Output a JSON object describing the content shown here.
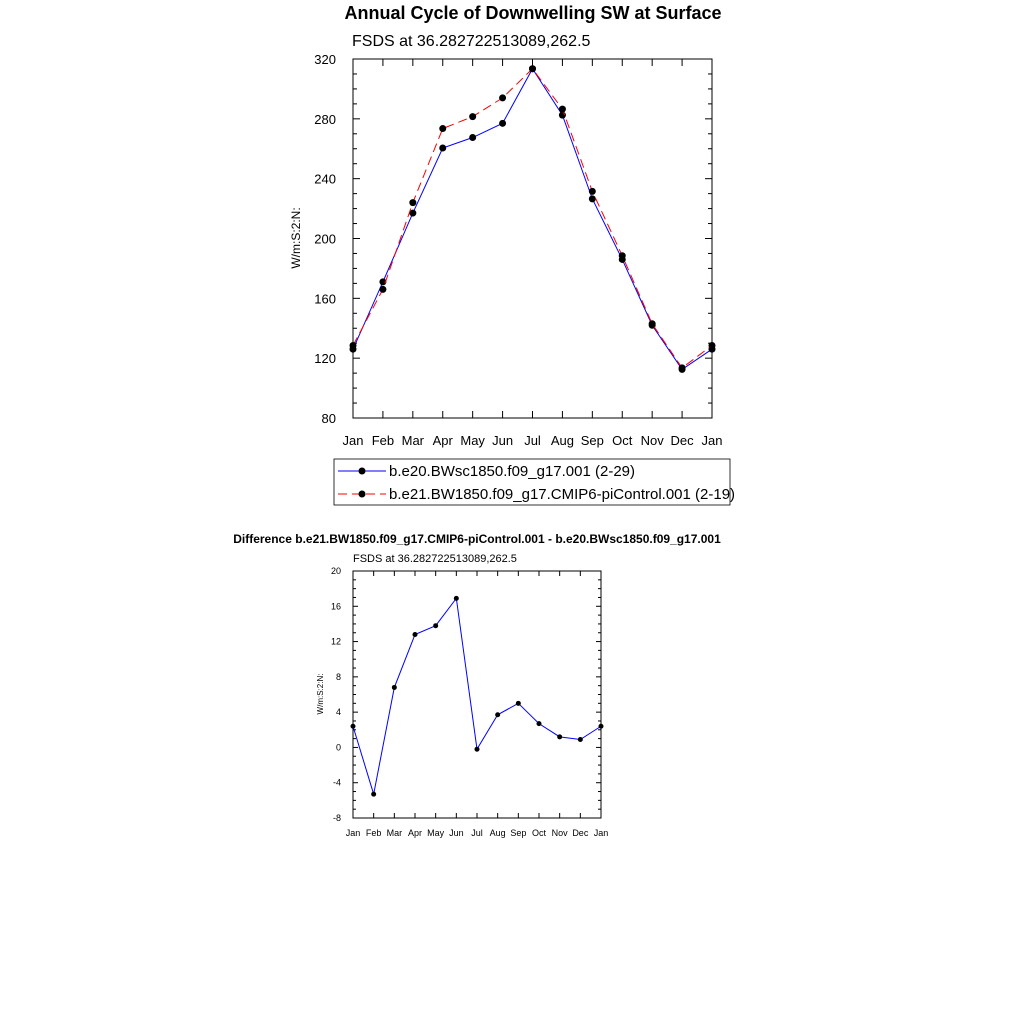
{
  "chart_data": [
    {
      "type": "line",
      "title": "Annual Cycle of Downwelling SW at Surface",
      "subtitle": "FSDS at 36.282722513089,262.5",
      "xlabel": "",
      "ylabel": "W/m:S:2:N:",
      "categories": [
        "Jan",
        "Feb",
        "Mar",
        "Apr",
        "May",
        "Jun",
        "Jul",
        "Aug",
        "Sep",
        "Oct",
        "Nov",
        "Dec",
        "Jan"
      ],
      "ylim": [
        80,
        320
      ],
      "yticks": [
        80,
        120,
        160,
        200,
        240,
        280,
        320
      ],
      "legend_position": "bottom",
      "series": [
        {
          "name": "b.e20.BWsc1850.f09_g17.001 (2-29)",
          "color": "#0000ff",
          "line_style": "solid",
          "values": [
            126.0,
            171.0,
            217.0,
            260.5,
            267.5,
            277.0,
            313.5,
            282.5,
            226.5,
            186.0,
            142.0,
            112.5,
            126.0
          ]
        },
        {
          "name": "b.e21.BW1850.f09_g17.CMIP6-piControl.001 (2-19)",
          "color": "#ff0000",
          "line_style": "dashed",
          "values": [
            128.5,
            166.0,
            224.0,
            273.5,
            281.5,
            294.0,
            313.5,
            286.5,
            231.5,
            188.5,
            143.0,
            113.5,
            128.5
          ]
        }
      ]
    },
    {
      "type": "line",
      "title": "Difference b.e21.BW1850.f09_g17.CMIP6-piControl.001 - b.e20.BWsc1850.f09_g17.001",
      "subtitle": "FSDS at 36.282722513089,262.5",
      "xlabel": "",
      "ylabel": "W/m:S:2:N:",
      "categories": [
        "Jan",
        "Feb",
        "Mar",
        "Apr",
        "May",
        "Jun",
        "Jul",
        "Aug",
        "Sep",
        "Oct",
        "Nov",
        "Dec",
        "Jan"
      ],
      "ylim": [
        -8,
        20
      ],
      "yticks": [
        -8,
        -4,
        0,
        4,
        8,
        12,
        16,
        20
      ],
      "series": [
        {
          "color": "#0000ff",
          "line_style": "solid",
          "values": [
            2.4,
            -5.3,
            6.8,
            12.8,
            13.8,
            16.9,
            -0.2,
            3.7,
            5.0,
            2.7,
            1.2,
            0.9,
            2.4
          ]
        }
      ]
    }
  ]
}
